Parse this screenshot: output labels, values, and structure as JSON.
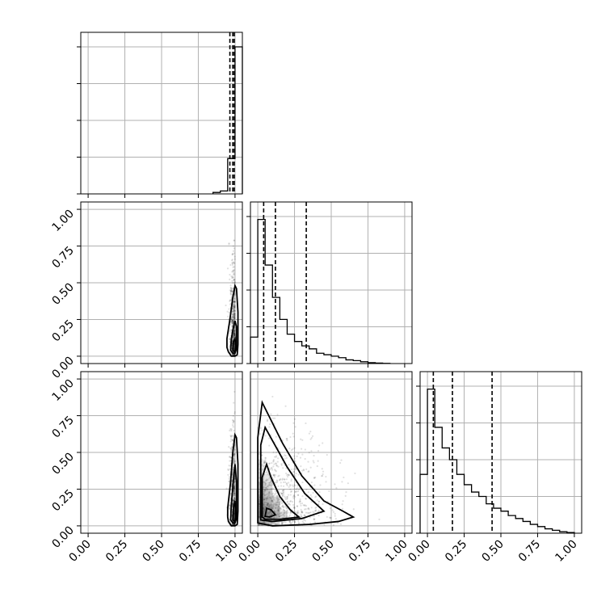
{
  "chart_data": {
    "type": "corner",
    "title": "",
    "ranges": {
      "x0": [
        -0.05,
        1.05
      ],
      "x1": [
        -0.05,
        1.05
      ],
      "x2": [
        -0.05,
        1.05
      ]
    },
    "ticks": [
      0.0,
      0.25,
      0.5,
      0.75,
      1.0
    ],
    "tick_labels": [
      "0.00",
      "0.25",
      "0.50",
      "0.75",
      "1.00"
    ],
    "grid": true,
    "histograms": [
      {
        "variable": "x0",
        "bin_width": 0.05,
        "bins": [
          {
            "x0": 0.85,
            "x1": 0.9,
            "count": 0.01
          },
          {
            "x0": 0.9,
            "x1": 0.95,
            "count": 0.02
          },
          {
            "x0": 0.95,
            "x1": 1.0,
            "count": 0.24
          },
          {
            "x0": 1.0,
            "x1": 1.05,
            "count": 1.0
          }
        ],
        "quantiles": [
          0.965,
          0.985,
          0.995
        ]
      },
      {
        "variable": "x1",
        "bin_width": 0.05,
        "bins": [
          {
            "x0": -0.05,
            "x1": 0.0,
            "count": 0.18
          },
          {
            "x0": 0.0,
            "x1": 0.05,
            "count": 0.98
          },
          {
            "x0": 0.05,
            "x1": 0.1,
            "count": 0.67
          },
          {
            "x0": 0.1,
            "x1": 0.15,
            "count": 0.45
          },
          {
            "x0": 0.15,
            "x1": 0.2,
            "count": 0.3
          },
          {
            "x0": 0.2,
            "x1": 0.25,
            "count": 0.2
          },
          {
            "x0": 0.25,
            "x1": 0.3,
            "count": 0.15
          },
          {
            "x0": 0.3,
            "x1": 0.35,
            "count": 0.12
          },
          {
            "x0": 0.35,
            "x1": 0.4,
            "count": 0.1
          },
          {
            "x0": 0.4,
            "x1": 0.45,
            "count": 0.07
          },
          {
            "x0": 0.45,
            "x1": 0.5,
            "count": 0.06
          },
          {
            "x0": 0.5,
            "x1": 0.55,
            "count": 0.05
          },
          {
            "x0": 0.55,
            "x1": 0.6,
            "count": 0.04
          },
          {
            "x0": 0.6,
            "x1": 0.65,
            "count": 0.025
          },
          {
            "x0": 0.65,
            "x1": 0.7,
            "count": 0.02
          },
          {
            "x0": 0.7,
            "x1": 0.75,
            "count": 0.012
          },
          {
            "x0": 0.75,
            "x1": 0.8,
            "count": 0.006
          },
          {
            "x0": 0.8,
            "x1": 0.85,
            "count": 0.003
          },
          {
            "x0": 0.85,
            "x1": 0.9,
            "count": 0.001
          }
        ],
        "quantiles": [
          0.04,
          0.12,
          0.33
        ]
      },
      {
        "variable": "x2",
        "bin_width": 0.05,
        "bins": [
          {
            "x0": -0.05,
            "x1": 0.0,
            "count": 0.4
          },
          {
            "x0": 0.0,
            "x1": 0.05,
            "count": 0.98
          },
          {
            "x0": 0.05,
            "x1": 0.1,
            "count": 0.72
          },
          {
            "x0": 0.1,
            "x1": 0.15,
            "count": 0.58
          },
          {
            "x0": 0.15,
            "x1": 0.2,
            "count": 0.5
          },
          {
            "x0": 0.2,
            "x1": 0.25,
            "count": 0.4
          },
          {
            "x0": 0.25,
            "x1": 0.3,
            "count": 0.33
          },
          {
            "x0": 0.3,
            "x1": 0.35,
            "count": 0.28
          },
          {
            "x0": 0.35,
            "x1": 0.4,
            "count": 0.25
          },
          {
            "x0": 0.4,
            "x1": 0.45,
            "count": 0.2
          },
          {
            "x0": 0.45,
            "x1": 0.5,
            "count": 0.17
          },
          {
            "x0": 0.5,
            "x1": 0.55,
            "count": 0.15
          },
          {
            "x0": 0.55,
            "x1": 0.6,
            "count": 0.12
          },
          {
            "x0": 0.6,
            "x1": 0.65,
            "count": 0.1
          },
          {
            "x0": 0.65,
            "x1": 0.7,
            "count": 0.08
          },
          {
            "x0": 0.7,
            "x1": 0.75,
            "count": 0.06
          },
          {
            "x0": 0.75,
            "x1": 0.8,
            "count": 0.045
          },
          {
            "x0": 0.8,
            "x1": 0.85,
            "count": 0.03
          },
          {
            "x0": 0.85,
            "x1": 0.9,
            "count": 0.02
          },
          {
            "x0": 0.9,
            "x1": 0.95,
            "count": 0.01
          },
          {
            "x0": 0.95,
            "x1": 1.0,
            "count": 0.005
          }
        ],
        "quantiles": [
          0.04,
          0.17,
          0.44
        ]
      }
    ],
    "scatter_panels": [
      {
        "x_variable": "x0",
        "y_variable": "x1",
        "contours": [
          [
            [
              0.955,
              0.03
            ],
            [
              0.975,
              0.0
            ],
            [
              1.0,
              0.0
            ],
            [
              1.015,
              0.01
            ],
            [
              1.02,
              0.08
            ],
            [
              1.02,
              0.3
            ],
            [
              1.01,
              0.46
            ],
            [
              1.0,
              0.48
            ],
            [
              0.985,
              0.4
            ],
            [
              0.965,
              0.25
            ],
            [
              0.945,
              0.12
            ],
            [
              0.945,
              0.06
            ],
            [
              0.955,
              0.03
            ]
          ],
          [
            [
              0.97,
              0.04
            ],
            [
              0.985,
              0.02
            ],
            [
              1.0,
              0.02
            ],
            [
              1.01,
              0.05
            ],
            [
              1.01,
              0.2
            ],
            [
              1.0,
              0.24
            ],
            [
              0.99,
              0.2
            ],
            [
              0.975,
              0.12
            ],
            [
              0.97,
              0.04
            ]
          ],
          [
            [
              0.985,
              0.04
            ],
            [
              1.0,
              0.03
            ],
            [
              1.005,
              0.06
            ],
            [
              1.0,
              0.12
            ],
            [
              0.99,
              0.1
            ],
            [
              0.985,
              0.04
            ]
          ]
        ],
        "density_cells": [
          {
            "x": 0.99,
            "y": 0.03,
            "level": 0.55
          },
          {
            "x": 0.99,
            "y": 0.08,
            "level": 0.45
          },
          {
            "x": 0.99,
            "y": 0.15,
            "level": 0.3
          },
          {
            "x": 0.99,
            "y": 0.25,
            "level": 0.18
          },
          {
            "x": 0.99,
            "y": 0.35,
            "level": 0.1
          }
        ]
      },
      {
        "x_variable": "x0",
        "y_variable": "x2",
        "contours": [
          [
            [
              0.955,
              0.03
            ],
            [
              0.975,
              0.0
            ],
            [
              1.0,
              0.0
            ],
            [
              1.015,
              0.01
            ],
            [
              1.02,
              0.1
            ],
            [
              1.02,
              0.42
            ],
            [
              1.01,
              0.6
            ],
            [
              1.0,
              0.62
            ],
            [
              0.985,
              0.5
            ],
            [
              0.97,
              0.3
            ],
            [
              0.95,
              0.12
            ],
            [
              0.95,
              0.06
            ],
            [
              0.955,
              0.03
            ]
          ],
          [
            [
              0.97,
              0.04
            ],
            [
              0.985,
              0.02
            ],
            [
              1.0,
              0.02
            ],
            [
              1.01,
              0.05
            ],
            [
              1.01,
              0.3
            ],
            [
              1.0,
              0.42
            ],
            [
              0.99,
              0.32
            ],
            [
              0.975,
              0.15
            ],
            [
              0.97,
              0.04
            ]
          ],
          [
            [
              0.985,
              0.04
            ],
            [
              1.0,
              0.03
            ],
            [
              1.005,
              0.07
            ],
            [
              1.0,
              0.17
            ],
            [
              0.99,
              0.13
            ],
            [
              0.985,
              0.04
            ]
          ]
        ],
        "density_cells": [
          {
            "x": 0.99,
            "y": 0.03,
            "level": 0.5
          },
          {
            "x": 0.99,
            "y": 0.08,
            "level": 0.42
          },
          {
            "x": 0.99,
            "y": 0.15,
            "level": 0.32
          },
          {
            "x": 0.99,
            "y": 0.25,
            "level": 0.22
          },
          {
            "x": 0.99,
            "y": 0.35,
            "level": 0.15
          },
          {
            "x": 0.99,
            "y": 0.45,
            "level": 0.08
          }
        ]
      },
      {
        "x_variable": "x1",
        "y_variable": "x2",
        "contours": [
          [
            [
              0.0,
              0.02
            ],
            [
              0.0,
              0.6
            ],
            [
              0.03,
              0.84
            ],
            [
              0.07,
              0.76
            ],
            [
              0.17,
              0.56
            ],
            [
              0.3,
              0.34
            ],
            [
              0.45,
              0.17
            ],
            [
              0.58,
              0.1
            ],
            [
              0.65,
              0.06
            ],
            [
              0.55,
              0.03
            ],
            [
              0.35,
              0.01
            ],
            [
              0.1,
              0.0
            ],
            [
              0.0,
              0.02
            ]
          ],
          [
            [
              0.02,
              0.04
            ],
            [
              0.02,
              0.55
            ],
            [
              0.05,
              0.67
            ],
            [
              0.1,
              0.58
            ],
            [
              0.2,
              0.4
            ],
            [
              0.32,
              0.22
            ],
            [
              0.45,
              0.1
            ],
            [
              0.3,
              0.05
            ],
            [
              0.1,
              0.03
            ],
            [
              0.02,
              0.04
            ]
          ],
          [
            [
              0.03,
              0.06
            ],
            [
              0.03,
              0.33
            ],
            [
              0.06,
              0.42
            ],
            [
              0.09,
              0.33
            ],
            [
              0.15,
              0.2
            ],
            [
              0.22,
              0.11
            ],
            [
              0.28,
              0.06
            ],
            [
              0.15,
              0.045
            ],
            [
              0.05,
              0.045
            ],
            [
              0.03,
              0.06
            ]
          ],
          [
            [
              0.05,
              0.065
            ],
            [
              0.06,
              0.12
            ],
            [
              0.09,
              0.11
            ],
            [
              0.12,
              0.075
            ],
            [
              0.08,
              0.06
            ],
            [
              0.05,
              0.065
            ]
          ]
        ],
        "density_cells": [
          {
            "x": 0.025,
            "y": 0.025,
            "level": 0.35
          },
          {
            "x": 0.075,
            "y": 0.025,
            "level": 0.25
          },
          {
            "x": 0.125,
            "y": 0.025,
            "level": 0.15
          },
          {
            "x": 0.025,
            "y": 0.075,
            "level": 0.5
          },
          {
            "x": 0.075,
            "y": 0.075,
            "level": 0.45
          },
          {
            "x": 0.125,
            "y": 0.075,
            "level": 0.3
          },
          {
            "x": 0.175,
            "y": 0.075,
            "level": 0.15
          },
          {
            "x": 0.025,
            "y": 0.125,
            "level": 0.45
          },
          {
            "x": 0.075,
            "y": 0.125,
            "level": 0.4
          },
          {
            "x": 0.125,
            "y": 0.125,
            "level": 0.25
          },
          {
            "x": 0.025,
            "y": 0.175,
            "level": 0.35
          },
          {
            "x": 0.075,
            "y": 0.175,
            "level": 0.3
          },
          {
            "x": 0.125,
            "y": 0.175,
            "level": 0.18
          },
          {
            "x": 0.025,
            "y": 0.225,
            "level": 0.28
          },
          {
            "x": 0.075,
            "y": 0.225,
            "level": 0.22
          },
          {
            "x": 0.025,
            "y": 0.275,
            "level": 0.2
          },
          {
            "x": 0.075,
            "y": 0.275,
            "level": 0.15
          },
          {
            "x": 0.025,
            "y": 0.325,
            "level": 0.15
          },
          {
            "x": 0.075,
            "y": 0.325,
            "level": 0.1
          },
          {
            "x": 0.025,
            "y": 0.375,
            "level": 0.1
          },
          {
            "x": 0.025,
            "y": 0.425,
            "level": 0.07
          }
        ]
      }
    ]
  }
}
